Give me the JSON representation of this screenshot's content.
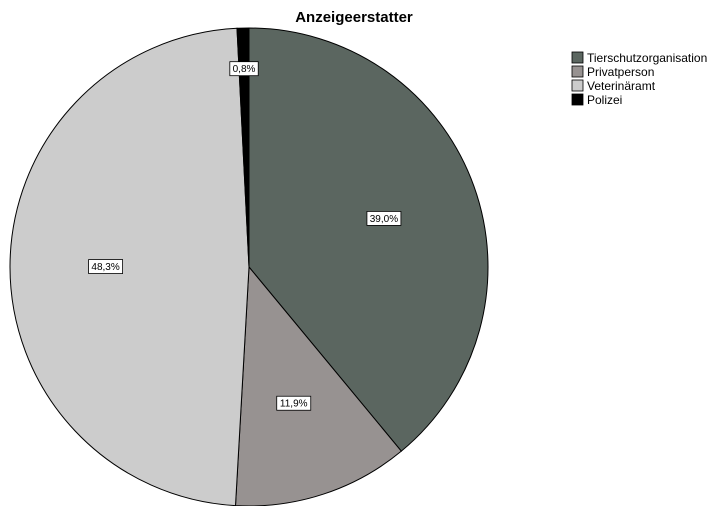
{
  "chart_data": {
    "type": "pie",
    "title": "Anzeigeerstatter",
    "slices": [
      {
        "label": "Tierschutzorganisation",
        "value": 39.0,
        "display": "39,0%",
        "color": "#5b6660"
      },
      {
        "label": "Privatperson",
        "value": 11.9,
        "display": "11,9%",
        "color": "#979291"
      },
      {
        "label": "Veterinäramt",
        "value": 48.3,
        "display": "48,3%",
        "color": "#cccccc"
      },
      {
        "label": "Polizei",
        "value": 0.8,
        "display": "0,8%",
        "color": "#000000"
      }
    ],
    "legend_position": "top-right",
    "start": "12 o'clock",
    "direction": "clockwise"
  }
}
